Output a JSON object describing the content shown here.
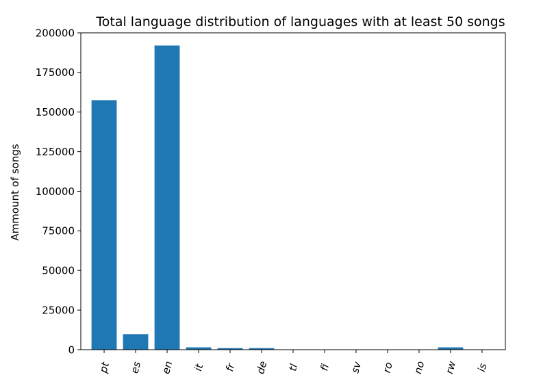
{
  "chart_data": {
    "type": "bar",
    "title": "Total language distribution of languages with at least 50 songs",
    "xlabel": "",
    "ylabel": "Ammount of songs",
    "categories": [
      "pt",
      "es",
      "en",
      "it",
      "fr",
      "de",
      "tl",
      "fi",
      "sv",
      "ro",
      "no",
      "rw",
      "is"
    ],
    "values": [
      157500,
      9800,
      192000,
      1500,
      1000,
      1000,
      150,
      150,
      100,
      100,
      100,
      1500,
      100
    ],
    "yticks": [
      0,
      25000,
      50000,
      75000,
      100000,
      125000,
      150000,
      175000,
      200000
    ],
    "ylim": [
      0,
      200000
    ],
    "bar_color": "#1f77b4",
    "grid": false,
    "xtick_rotation": "rotated ~75 degrees"
  }
}
